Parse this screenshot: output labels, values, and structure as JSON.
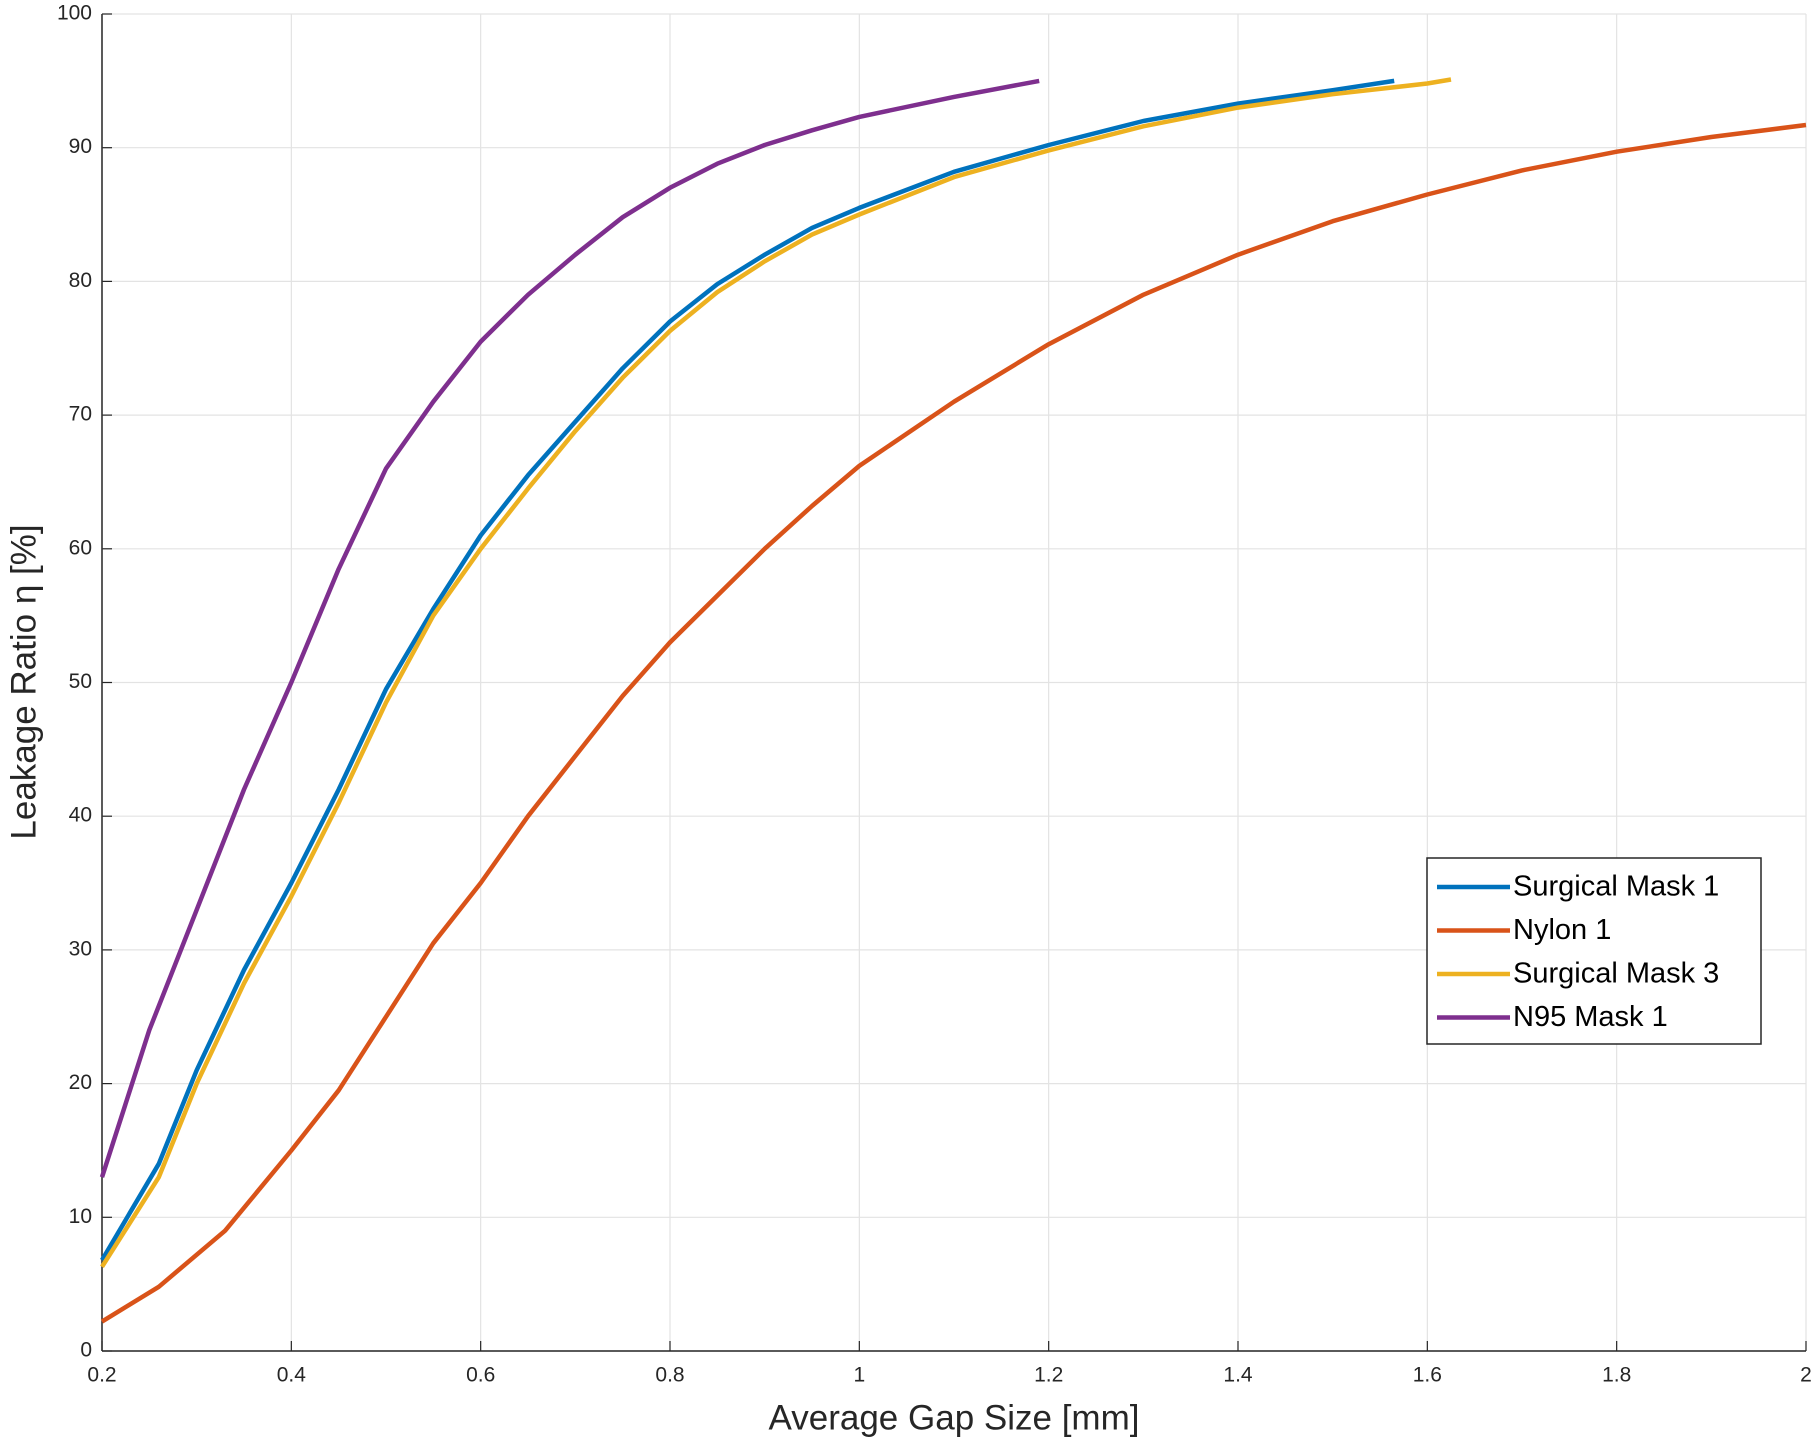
{
  "chart_data": {
    "type": "line",
    "xlabel": "Average Gap Size [mm]",
    "ylabel": "Leakage Ratio  η [%]",
    "xlim": [
      0.2,
      2
    ],
    "ylim": [
      0,
      100
    ],
    "xticks": [
      0.2,
      0.4,
      0.6,
      0.8,
      1,
      1.2,
      1.4,
      1.6,
      1.8,
      2
    ],
    "yticks": [
      0,
      10,
      20,
      30,
      40,
      50,
      60,
      70,
      80,
      90,
      100
    ],
    "grid": true,
    "legend": "right",
    "series": [
      {
        "name": "Surgical Mask 1",
        "color": "#0072bd",
        "x": [
          0.2,
          0.26,
          0.3,
          0.35,
          0.4,
          0.45,
          0.5,
          0.55,
          0.6,
          0.65,
          0.7,
          0.75,
          0.8,
          0.85,
          0.9,
          0.95,
          1.0,
          1.1,
          1.2,
          1.3,
          1.4,
          1.5,
          1.565
        ],
        "values": [
          6.8,
          14,
          21,
          28.5,
          35,
          42,
          49.5,
          55.5,
          61,
          65.5,
          69.5,
          73.5,
          77,
          79.8,
          82,
          84,
          85.5,
          88.2,
          90.2,
          92,
          93.3,
          94.3,
          95
        ]
      },
      {
        "name": "Nylon 1",
        "color": "#d95319",
        "x": [
          0.2,
          0.26,
          0.33,
          0.4,
          0.45,
          0.5,
          0.55,
          0.6,
          0.65,
          0.7,
          0.75,
          0.8,
          0.85,
          0.9,
          0.95,
          1.0,
          1.1,
          1.2,
          1.3,
          1.4,
          1.5,
          1.6,
          1.7,
          1.8,
          1.9,
          2.0
        ],
        "values": [
          2.2,
          4.8,
          9,
          15,
          19.5,
          25,
          30.5,
          35,
          40,
          44.5,
          49,
          53,
          56.5,
          60,
          63.2,
          66.2,
          71,
          75.3,
          79,
          82,
          84.5,
          86.5,
          88.3,
          89.7,
          90.8,
          91.7
        ]
      },
      {
        "name": "Surgical Mask 3",
        "color": "#edb120",
        "x": [
          0.2,
          0.26,
          0.3,
          0.35,
          0.4,
          0.45,
          0.5,
          0.55,
          0.6,
          0.65,
          0.7,
          0.75,
          0.8,
          0.85,
          0.9,
          0.95,
          1.0,
          1.1,
          1.2,
          1.3,
          1.4,
          1.5,
          1.6,
          1.625
        ],
        "values": [
          6.3,
          13,
          20,
          27.5,
          34,
          41,
          48.5,
          55,
          60,
          64.5,
          68.8,
          72.8,
          76.3,
          79.2,
          81.5,
          83.5,
          85,
          87.8,
          89.8,
          91.6,
          93,
          94,
          94.8,
          95.1
        ]
      },
      {
        "name": "N95 Mask 1",
        "color": "#7e2f8e",
        "x": [
          0.2,
          0.25,
          0.3,
          0.35,
          0.4,
          0.45,
          0.5,
          0.55,
          0.6,
          0.65,
          0.7,
          0.75,
          0.8,
          0.85,
          0.9,
          0.95,
          1.0,
          1.1,
          1.19
        ],
        "values": [
          13,
          24,
          33,
          42,
          50,
          58.5,
          66,
          71,
          75.5,
          79,
          82,
          84.8,
          87,
          88.8,
          90.2,
          91.3,
          92.3,
          93.8,
          95
        ]
      }
    ]
  }
}
